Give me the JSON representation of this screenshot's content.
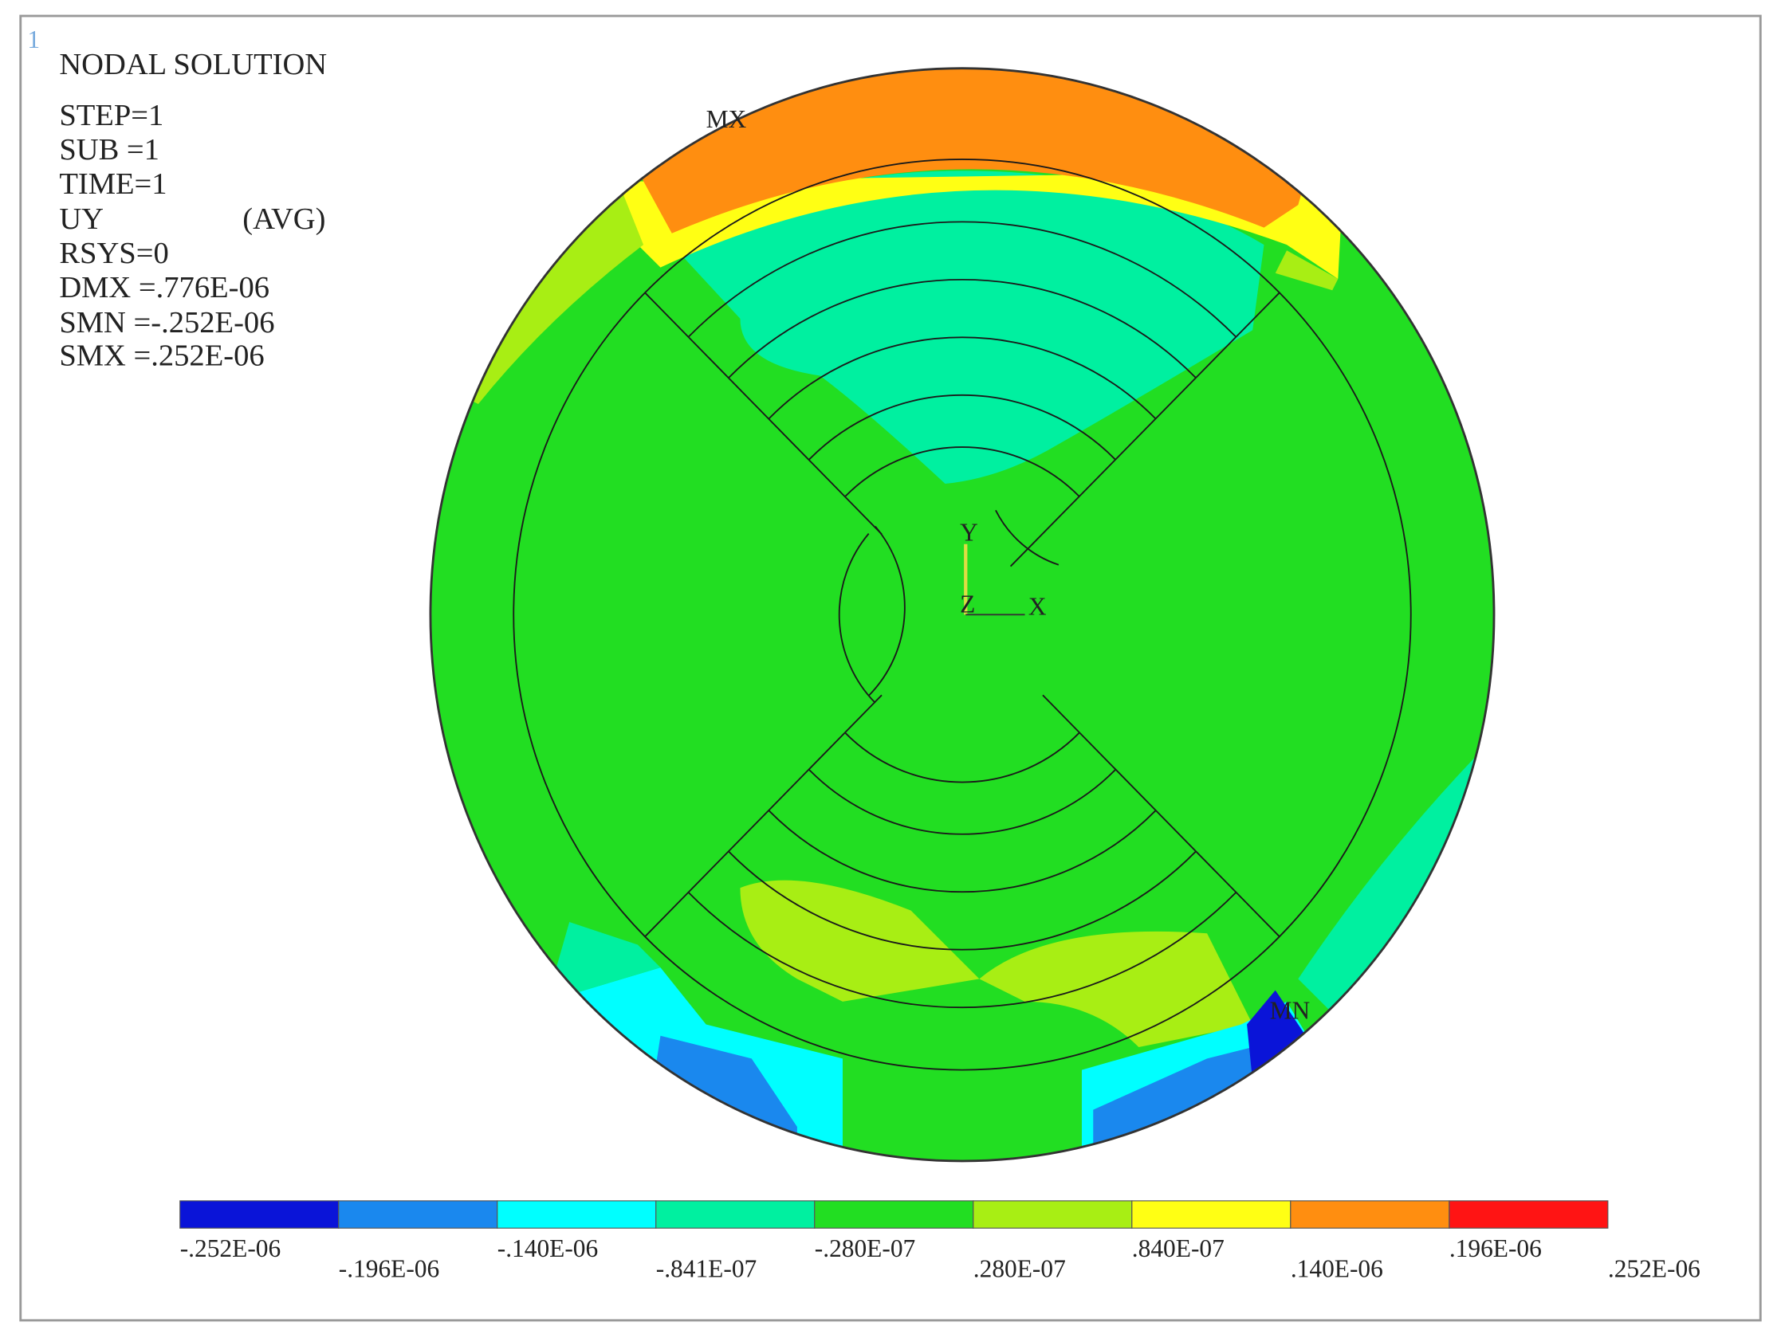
{
  "window_label": "1",
  "info": [
    "NODAL SOLUTION",
    "STEP=1",
    "SUB =1",
    "TIME=1",
    "UY",
    "(AVG)",
    "RSYS=0",
    "DMX =.776E-06",
    "SMN =-.252E-06",
    "SMX =.252E-06"
  ],
  "markers": {
    "max": "MX",
    "min": "MN"
  },
  "axes": {
    "y": "Y",
    "z": "Z",
    "x": "X"
  },
  "legend": {
    "colors": [
      "#0a14d8",
      "#1a88ee",
      "#00ffff",
      "#00f0a0",
      "#22de22",
      "#a8ee14",
      "#ffff14",
      "#ff8e10",
      "#ff1414"
    ],
    "labels": [
      "-.252E-06",
      "-.196E-06",
      "-.140E-06",
      "-.841E-07",
      "-.280E-07",
      ".280E-07",
      ".840E-07",
      ".140E-06",
      ".196E-06",
      ".252E-06"
    ]
  }
}
